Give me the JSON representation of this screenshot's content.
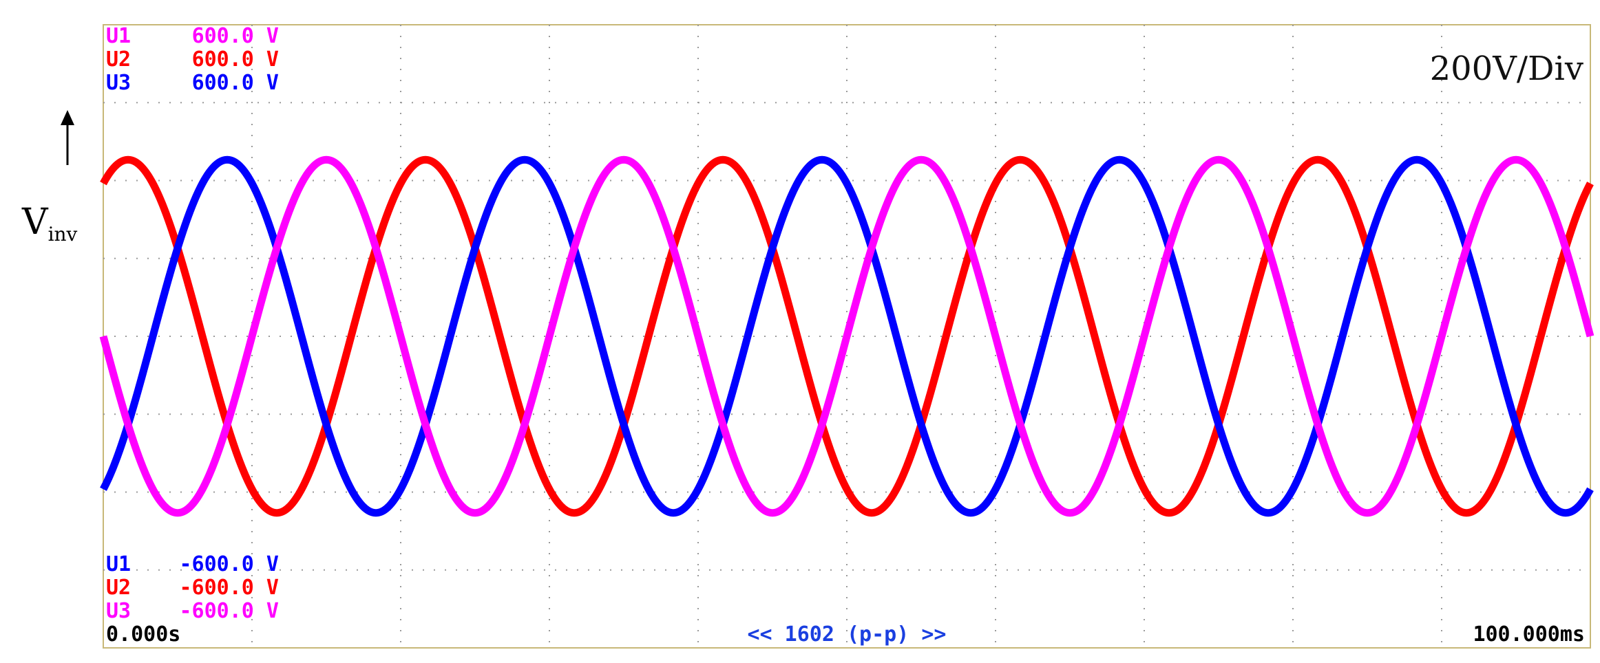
{
  "chart_data": {
    "type": "line",
    "title": "",
    "xlabel": "",
    "ylabel": "V",
    "ylabel_sub": "inv",
    "scale_label": "200V/Div",
    "x_unit": "ms",
    "xlim": [
      0,
      100
    ],
    "ylim": [
      -600,
      600
    ],
    "grid": true,
    "time_start_label": "0.000s",
    "time_end_label": "100.000ms",
    "footer_label": "<< 1602 (p-p) >>",
    "top_labels": [
      {
        "name": "U1",
        "value": "600.0 V",
        "color": "#ff00ff"
      },
      {
        "name": "U2",
        "value": "600.0 V",
        "color": "#ff0000"
      },
      {
        "name": "U3",
        "value": "600.0 V",
        "color": "#0000ff"
      }
    ],
    "bottom_labels": [
      {
        "name": "U1",
        "value": "-600.0 V",
        "color": "#0000ff"
      },
      {
        "name": "U2",
        "value": "-600.0 V",
        "color": "#ff0000"
      },
      {
        "name": "U3",
        "value": "-600.0 V",
        "color": "#ff00ff"
      }
    ],
    "series": [
      {
        "color": "#ff0000",
        "amplitude_V": 340,
        "period_ms": 20,
        "phase_deg": 60
      },
      {
        "color": "#0000ff",
        "amplitude_V": 340,
        "period_ms": 20,
        "phase_deg": -60
      },
      {
        "color": "#ff00ff",
        "amplitude_V": 340,
        "period_ms": 20,
        "phase_deg": 180
      }
    ]
  }
}
